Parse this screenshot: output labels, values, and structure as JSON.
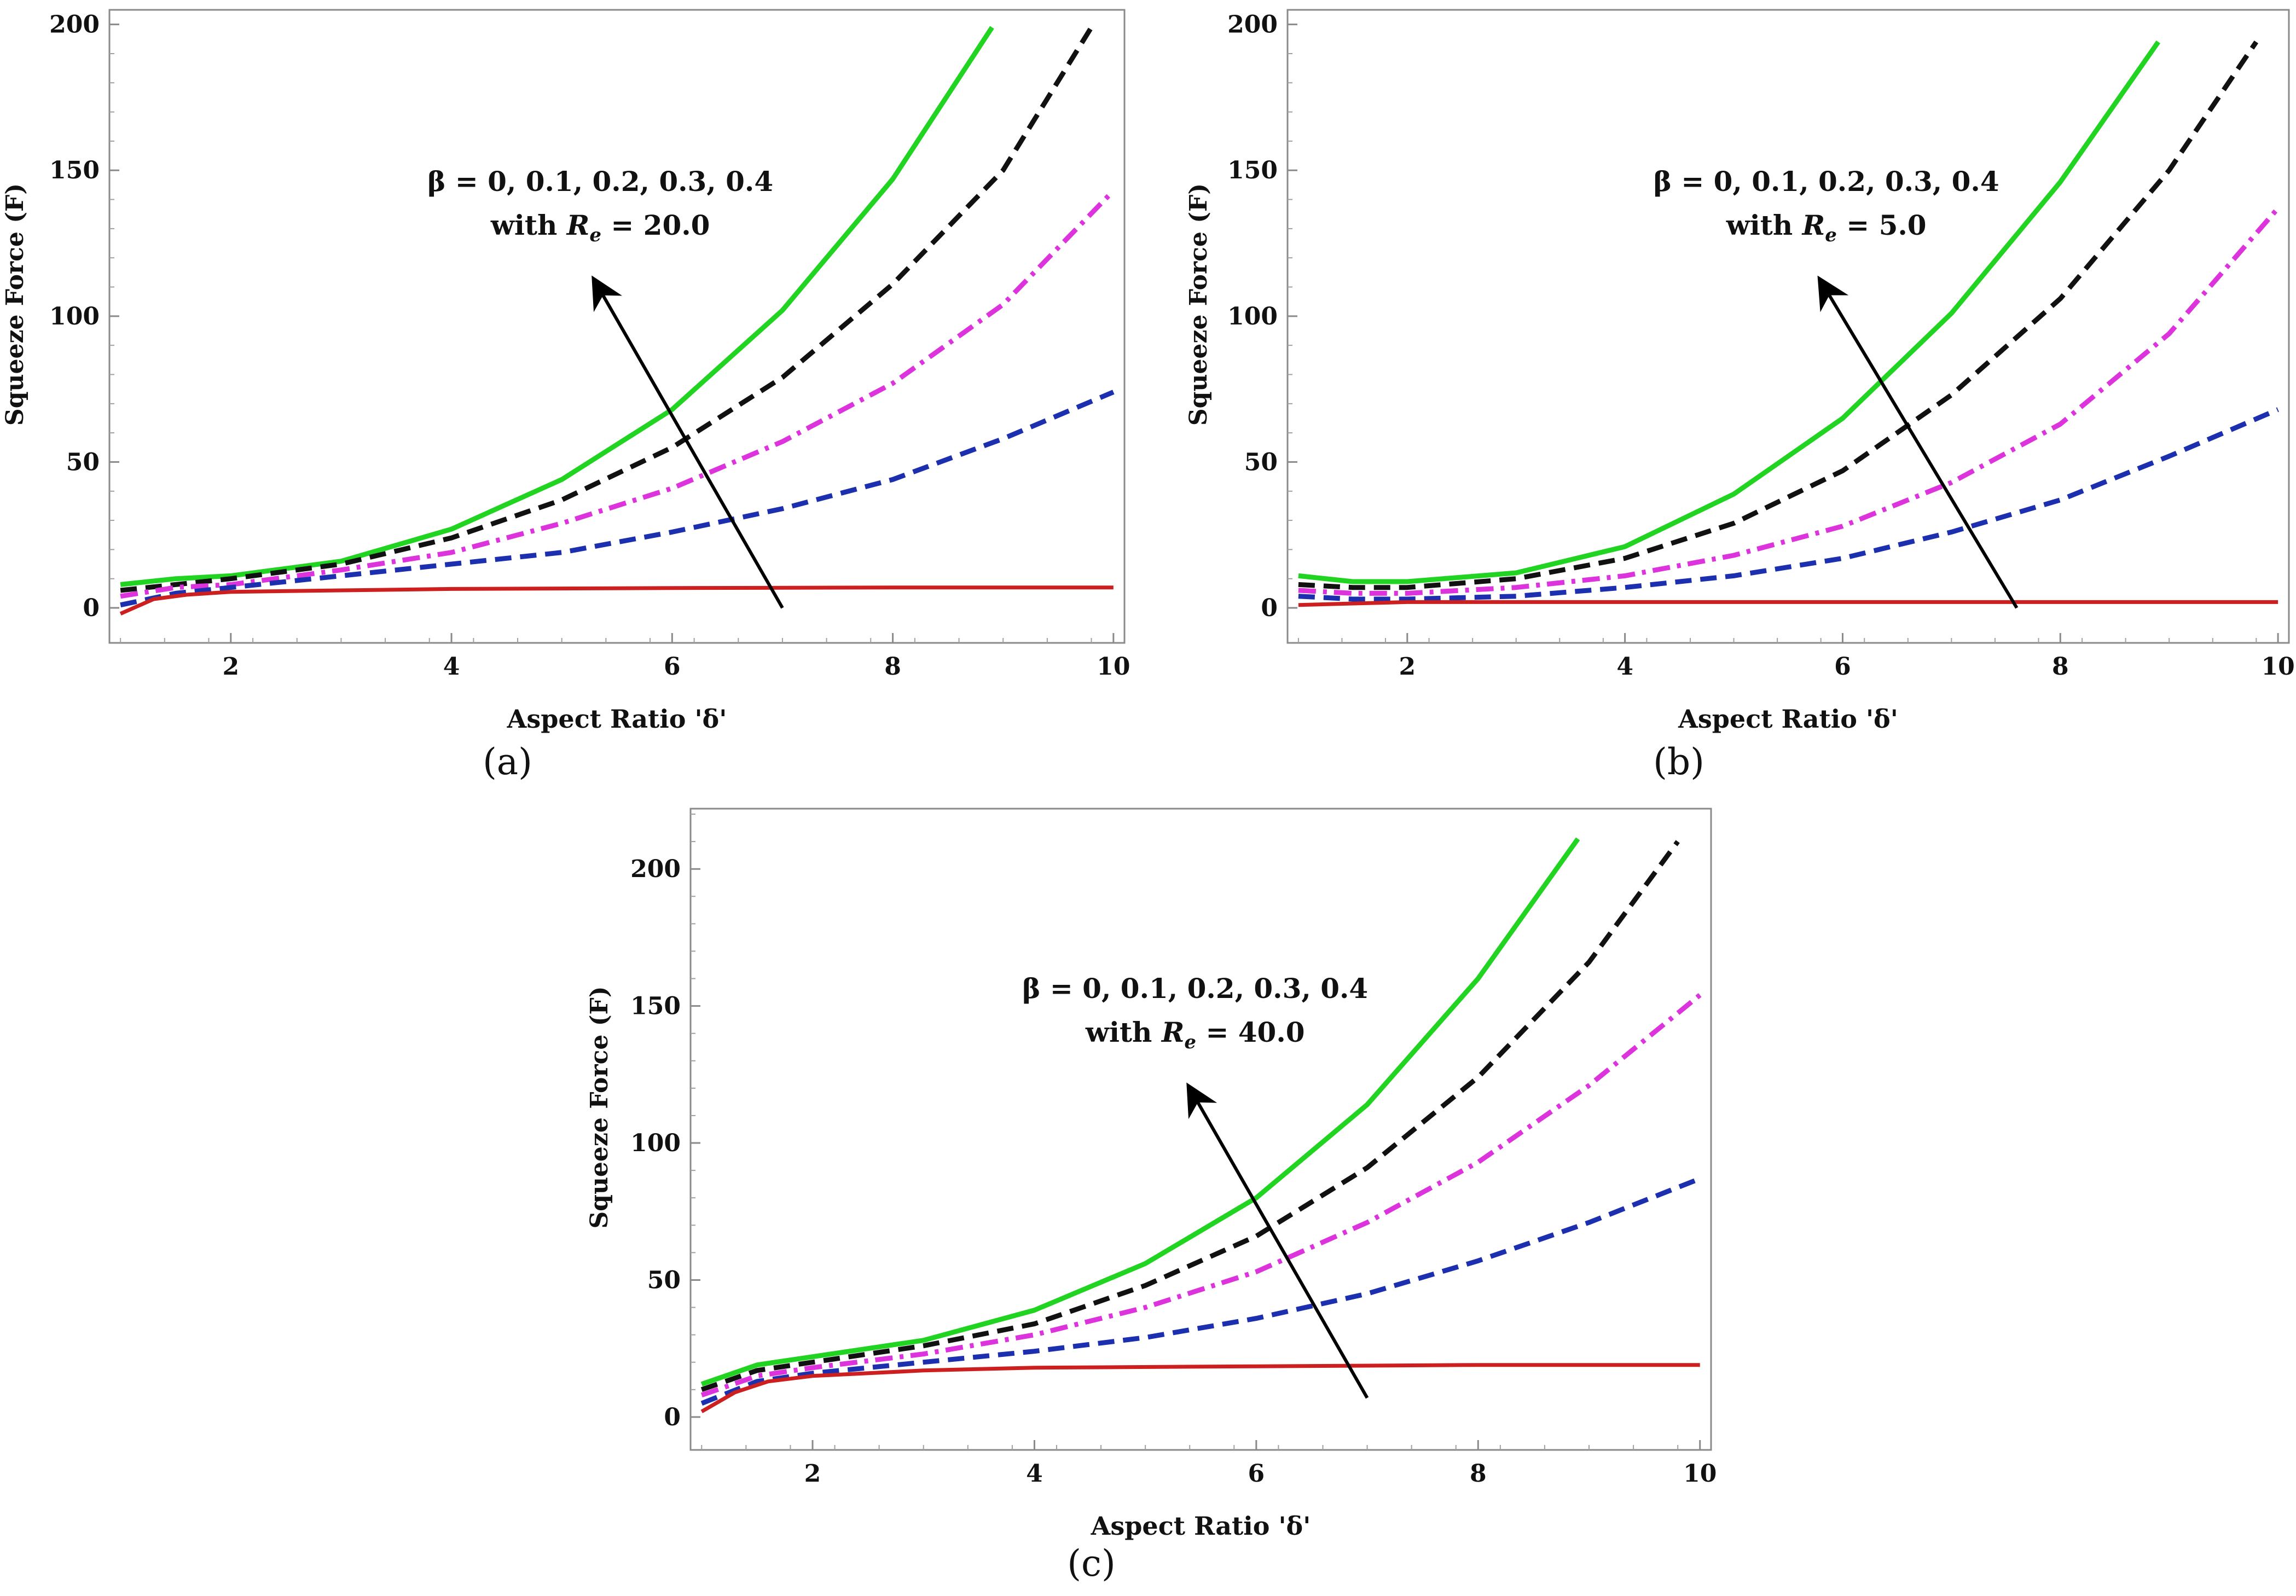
{
  "chart_data": [
    {
      "type": "line",
      "panel_label": "(a)",
      "xlabel": "Aspect Ratio 'δ'",
      "ylabel": "Squeeze Force (F)",
      "xlim": [
        0.9,
        10.1
      ],
      "ylim": [
        -12,
        205
      ],
      "xticks": [
        2,
        4,
        6,
        8,
        10
      ],
      "yticks": [
        0,
        50,
        100,
        150,
        200
      ],
      "annotation": {
        "line1": "β =  0,  0.1,  0.2,  0.3,  0.4",
        "line2_prefix": "with ",
        "line2_var": "R",
        "line2_sub": "e",
        "line2_suffix": " = 20.0"
      },
      "arrow": {
        "from": [
          7.0,
          0
        ],
        "to": [
          5.3,
          112
        ]
      },
      "series": [
        {
          "color": "#21d421",
          "style": "solid",
          "x": [
            1,
            1.5,
            2,
            3,
            4,
            5,
            6,
            7,
            8,
            8.9
          ],
          "y": [
            8,
            10,
            11,
            16,
            27,
            44,
            68,
            102,
            147,
            199
          ]
        },
        {
          "color": "#111111",
          "style": "dashed",
          "x": [
            1,
            1.5,
            2,
            3,
            4,
            5,
            6,
            7,
            8,
            9,
            9.8
          ],
          "y": [
            6,
            8,
            10,
            15,
            24,
            37,
            55,
            79,
            111,
            150,
            199
          ]
        },
        {
          "color": "#dd33dd",
          "style": "dashdot",
          "x": [
            1,
            1.5,
            2,
            3,
            4,
            5,
            6,
            7,
            8,
            9,
            10
          ],
          "y": [
            4,
            7,
            8,
            13,
            19,
            29,
            41,
            57,
            77,
            104,
            143
          ]
        },
        {
          "color": "#1c2fae",
          "style": "dashed",
          "x": [
            1,
            1.5,
            2,
            3,
            4,
            5,
            6,
            7,
            8,
            9,
            10
          ],
          "y": [
            1,
            5,
            7,
            11,
            15,
            19,
            26,
            34,
            44,
            58,
            74
          ]
        },
        {
          "color": "#cc2020",
          "style": "solid",
          "x": [
            1,
            1.3,
            1.6,
            2,
            3,
            4,
            6,
            8,
            10
          ],
          "y": [
            -2,
            3,
            4.5,
            5.5,
            6,
            6.5,
            6.8,
            7,
            7
          ]
        }
      ]
    },
    {
      "type": "line",
      "panel_label": "(b)",
      "xlabel": "Aspect Ratio 'δ'",
      "ylabel": "Squeeze Force (F)",
      "xlim": [
        0.9,
        10.1
      ],
      "ylim": [
        -12,
        205
      ],
      "xticks": [
        2,
        4,
        6,
        8,
        10
      ],
      "yticks": [
        0,
        50,
        100,
        150,
        200
      ],
      "annotation": {
        "line1": "β =  0,  0.1,  0.2,  0.3,  0.4",
        "line2_prefix": "with ",
        "line2_var": "R",
        "line2_sub": "e",
        "line2_suffix": " = 5.0"
      },
      "arrow": {
        "from": [
          7.6,
          0
        ],
        "to": [
          5.8,
          112
        ]
      },
      "series": [
        {
          "color": "#21d421",
          "style": "solid",
          "x": [
            1,
            1.5,
            2,
            3,
            4,
            5,
            6,
            7,
            8,
            8.9
          ],
          "y": [
            11,
            9,
            9,
            12,
            21,
            39,
            65,
            101,
            146,
            194
          ]
        },
        {
          "color": "#111111",
          "style": "dashed",
          "x": [
            1,
            1.5,
            2,
            3,
            4,
            5,
            6,
            7,
            8,
            9,
            9.8
          ],
          "y": [
            8,
            7,
            7,
            10,
            17,
            29,
            47,
            73,
            106,
            150,
            194
          ]
        },
        {
          "color": "#dd33dd",
          "style": "dashdot",
          "x": [
            1,
            1.5,
            2,
            3,
            4,
            5,
            6,
            7,
            8,
            9,
            10
          ],
          "y": [
            6,
            5,
            5,
            7,
            11,
            18,
            28,
            43,
            63,
            94,
            137
          ]
        },
        {
          "color": "#1c2fae",
          "style": "dashed",
          "x": [
            1,
            1.5,
            2,
            3,
            4,
            5,
            6,
            7,
            8,
            9,
            10
          ],
          "y": [
            4,
            3,
            3,
            4,
            7,
            11,
            17,
            26,
            37,
            52,
            68
          ]
        },
        {
          "color": "#cc2020",
          "style": "solid",
          "x": [
            1,
            1.5,
            2,
            3,
            4,
            6,
            8,
            10
          ],
          "y": [
            1,
            1.5,
            2,
            2,
            2,
            2,
            2,
            2
          ]
        }
      ]
    },
    {
      "type": "line",
      "panel_label": "(c)",
      "xlabel": "Aspect Ratio 'δ'",
      "ylabel": "Squeeze Force (F)",
      "xlim": [
        0.9,
        10.1
      ],
      "ylim": [
        -12,
        222
      ],
      "xticks": [
        2,
        4,
        6,
        8,
        10
      ],
      "yticks": [
        0,
        50,
        100,
        150,
        200
      ],
      "annotation": {
        "line1": "β =  0,  0.1,  0.2,  0.3,  0.4",
        "line2_prefix": "with ",
        "line2_var": "R",
        "line2_sub": "e",
        "line2_suffix": " = 40.0"
      },
      "arrow": {
        "from": [
          7.0,
          7
        ],
        "to": [
          5.4,
          120
        ]
      },
      "series": [
        {
          "color": "#21d421",
          "style": "solid",
          "x": [
            1,
            1.5,
            2,
            3,
            4,
            5,
            6,
            7,
            8,
            8.9
          ],
          "y": [
            12,
            19,
            22,
            28,
            39,
            56,
            80,
            114,
            160,
            211
          ]
        },
        {
          "color": "#111111",
          "style": "dashed",
          "x": [
            1,
            1.5,
            2,
            3,
            4,
            5,
            6,
            7,
            8,
            9,
            9.8
          ],
          "y": [
            10,
            17,
            20,
            26,
            34,
            48,
            66,
            91,
            124,
            166,
            210
          ]
        },
        {
          "color": "#dd33dd",
          "style": "dashdot",
          "x": [
            1,
            1.5,
            2,
            3,
            4,
            5,
            6,
            7,
            8,
            9,
            10
          ],
          "y": [
            8,
            15,
            18,
            23,
            30,
            40,
            53,
            71,
            93,
            121,
            154
          ]
        },
        {
          "color": "#1c2fae",
          "style": "dashed",
          "x": [
            1,
            1.5,
            2,
            3,
            4,
            5,
            6,
            7,
            8,
            9,
            10
          ],
          "y": [
            5,
            13,
            16,
            20,
            24,
            29,
            36,
            45,
            57,
            71,
            87
          ]
        },
        {
          "color": "#cc2020",
          "style": "solid",
          "x": [
            1,
            1.3,
            1.6,
            2,
            3,
            4,
            6,
            8,
            10
          ],
          "y": [
            2,
            9,
            13,
            15,
            17,
            18,
            18.5,
            19,
            19
          ]
        }
      ]
    }
  ]
}
